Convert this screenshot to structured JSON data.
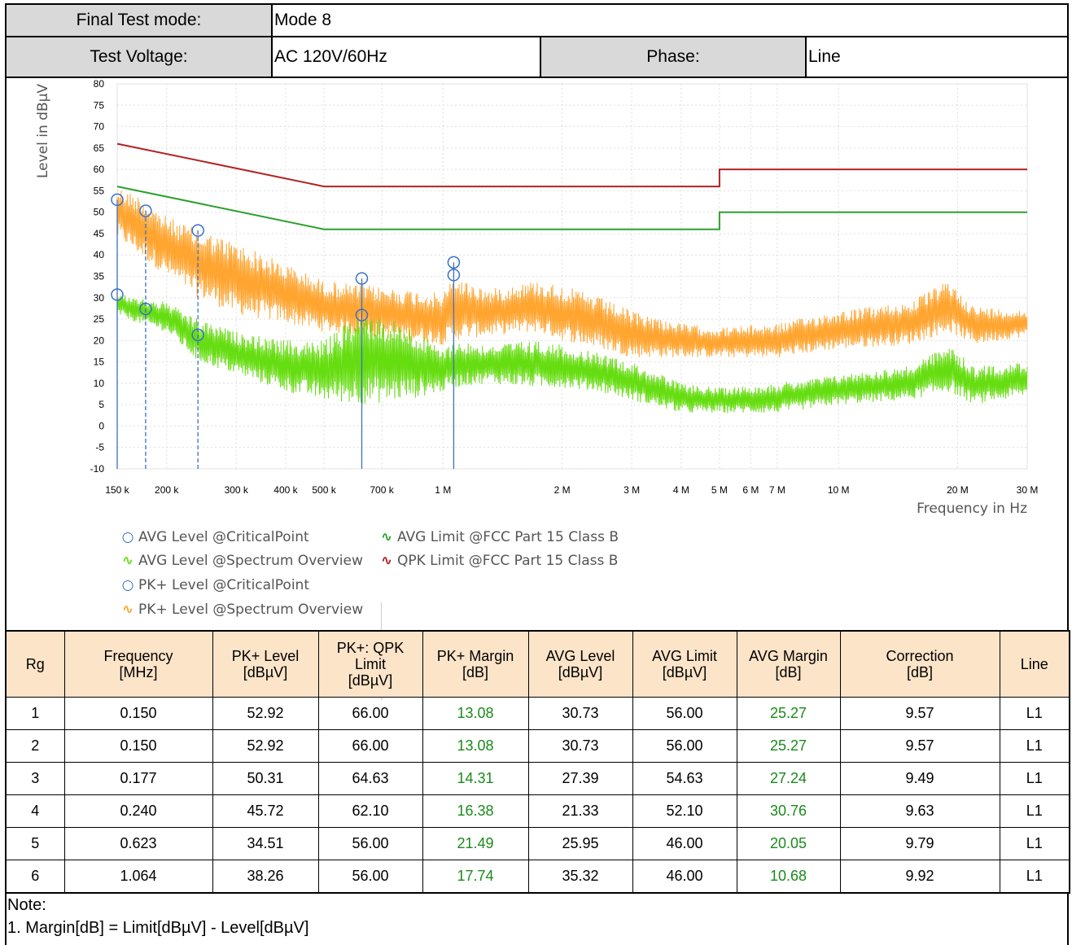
{
  "header": {
    "final_test_mode_label": "Final Test mode:",
    "final_test_mode_value": "Mode 8",
    "test_voltage_label": "Test Voltage:",
    "test_voltage_value": "AC 120V/60Hz",
    "phase_label": "Phase:",
    "phase_value": "Line"
  },
  "colors": {
    "qpk_limit": "#b22222",
    "avg_limit": "#2ca02c",
    "pk_spectrum": "#ffa530",
    "avg_spectrum": "#66dd11",
    "critical_point": "#3a6fc4"
  },
  "chart_data": {
    "type": "line",
    "xlabel": "Frequency in Hz",
    "ylabel": "Level in dBµV",
    "x_scale": "log",
    "xlim_hz": [
      150000,
      30000000
    ],
    "ylim": [
      -10,
      80
    ],
    "y_ticks": [
      80,
      75,
      70,
      65,
      60,
      55,
      50,
      45,
      40,
      35,
      30,
      25,
      20,
      15,
      10,
      5,
      0,
      -5,
      -10
    ],
    "x_ticks": [
      {
        "hz": 150000,
        "label": "150 k"
      },
      {
        "hz": 200000,
        "label": "200 k"
      },
      {
        "hz": 300000,
        "label": "300 k"
      },
      {
        "hz": 400000,
        "label": "400 k"
      },
      {
        "hz": 500000,
        "label": "500 k"
      },
      {
        "hz": 700000,
        "label": "700 k"
      },
      {
        "hz": 1000000,
        "label": "1 M"
      },
      {
        "hz": 2000000,
        "label": "2 M"
      },
      {
        "hz": 3000000,
        "label": "3 M"
      },
      {
        "hz": 4000000,
        "label": "4 M"
      },
      {
        "hz": 5000000,
        "label": "5 M"
      },
      {
        "hz": 6000000,
        "label": "6 M"
      },
      {
        "hz": 7000000,
        "label": "7 M"
      },
      {
        "hz": 10000000,
        "label": "10 M"
      },
      {
        "hz": 20000000,
        "label": "20 M"
      },
      {
        "hz": 30000000,
        "label": "30 M"
      }
    ],
    "grid": true,
    "legend_position": "bottom",
    "legend": [
      {
        "label": "AVG Level @CriticalPoint",
        "symbol": "○"
      },
      {
        "label": "AVG Level @Spectrum Overview",
        "symbol": "∿"
      },
      {
        "label": "PK+ Level @CriticalPoint",
        "symbol": "○"
      },
      {
        "label": "PK+ Level @Spectrum Overview",
        "symbol": "∿"
      },
      {
        "label": "AVG Limit @FCC Part 15 Class B",
        "symbol": "∿"
      },
      {
        "label": "QPK Limit @FCC Part 15 Class B",
        "symbol": "∿"
      }
    ],
    "series": [
      {
        "name": "QPK Limit @FCC Part 15 Class B",
        "x_hz": [
          150000,
          500000,
          500000,
          5000000,
          5000000,
          30000000
        ],
        "y": [
          66,
          56,
          56,
          56,
          60,
          60
        ]
      },
      {
        "name": "AVG Limit @FCC Part 15 Class B",
        "x_hz": [
          150000,
          500000,
          500000,
          5000000,
          5000000,
          30000000
        ],
        "y": [
          56,
          46,
          46,
          46,
          50,
          50
        ]
      },
      {
        "name": "PK+ Level @Spectrum Overview",
        "x_hz": [
          150000,
          170000,
          200000,
          240000,
          300000,
          400000,
          500000,
          623000,
          800000,
          1000000,
          1064000,
          1300000,
          1700000,
          2000000,
          2500000,
          3000000,
          4000000,
          5000000,
          7000000,
          10000000,
          15000000,
          19000000,
          22000000,
          30000000
        ],
        "y_max": [
          56,
          54,
          49,
          46,
          43,
          38,
          34,
          33,
          32,
          31,
          35,
          32,
          34,
          33,
          30,
          27,
          24,
          23,
          24,
          27,
          29,
          34,
          28,
          27
        ],
        "y_min": [
          44,
          40,
          35,
          30,
          26,
          24,
          22,
          21,
          20,
          19,
          20,
          21,
          22,
          20,
          18,
          16,
          16,
          16,
          16,
          18,
          19,
          22,
          19,
          21
        ]
      },
      {
        "name": "AVG Level @Spectrum Overview",
        "x_hz": [
          150000,
          170000,
          200000,
          240000,
          300000,
          400000,
          500000,
          623000,
          800000,
          1000000,
          1064000,
          1300000,
          1700000,
          2000000,
          2500000,
          3000000,
          4000000,
          5000000,
          7000000,
          10000000,
          15000000,
          19000000,
          22000000,
          30000000
        ],
        "y_max": [
          31,
          30,
          29,
          25,
          22,
          20,
          20,
          27,
          24,
          18,
          20,
          19,
          20,
          19,
          17,
          15,
          10,
          9,
          10,
          12,
          14,
          19,
          14,
          15
        ],
        "y_min": [
          26,
          24,
          22,
          15,
          12,
          8,
          6,
          5,
          6,
          8,
          9,
          10,
          9,
          9,
          8,
          6,
          3,
          3,
          3,
          5,
          6,
          8,
          5,
          7
        ]
      },
      {
        "name": "PK+ Level @CriticalPoint",
        "x_hz": [
          150000,
          177000,
          240000,
          623000,
          1064000
        ],
        "y": [
          52.92,
          50.31,
          45.72,
          34.51,
          38.26
        ]
      },
      {
        "name": "AVG Level @CriticalPoint",
        "x_hz": [
          150000,
          177000,
          240000,
          623000,
          1064000
        ],
        "y": [
          30.73,
          27.39,
          21.33,
          25.95,
          35.32
        ]
      }
    ]
  },
  "table": {
    "headers": [
      "Rg",
      "Frequency\n[MHz]",
      "PK+ Level\n[dBµV]",
      "PK+: QPK\nLimit\n[dBµV]",
      "PK+ Margin\n[dB]",
      "AVG Level\n[dBµV]",
      "AVG Limit\n[dBµV]",
      "AVG Margin\n[dB]",
      "Correction\n[dB]",
      "Line"
    ],
    "rows": [
      [
        "1",
        "0.150",
        "52.92",
        "66.00",
        "13.08",
        "30.73",
        "56.00",
        "25.27",
        "9.57",
        "L1"
      ],
      [
        "2",
        "0.150",
        "52.92",
        "66.00",
        "13.08",
        "30.73",
        "56.00",
        "25.27",
        "9.57",
        "L1"
      ],
      [
        "3",
        "0.177",
        "50.31",
        "64.63",
        "14.31",
        "27.39",
        "54.63",
        "27.24",
        "9.49",
        "L1"
      ],
      [
        "4",
        "0.240",
        "45.72",
        "62.10",
        "16.38",
        "21.33",
        "52.10",
        "30.76",
        "9.63",
        "L1"
      ],
      [
        "5",
        "0.623",
        "34.51",
        "56.00",
        "21.49",
        "25.95",
        "46.00",
        "20.05",
        "9.79",
        "L1"
      ],
      [
        "6",
        "1.064",
        "38.26",
        "56.00",
        "17.74",
        "35.32",
        "46.00",
        "10.68",
        "9.92",
        "L1"
      ]
    ]
  },
  "note": {
    "title": "Note:",
    "line1": "1. Margin[dB] = Limit[dBµV] - Level[dBµV]"
  }
}
